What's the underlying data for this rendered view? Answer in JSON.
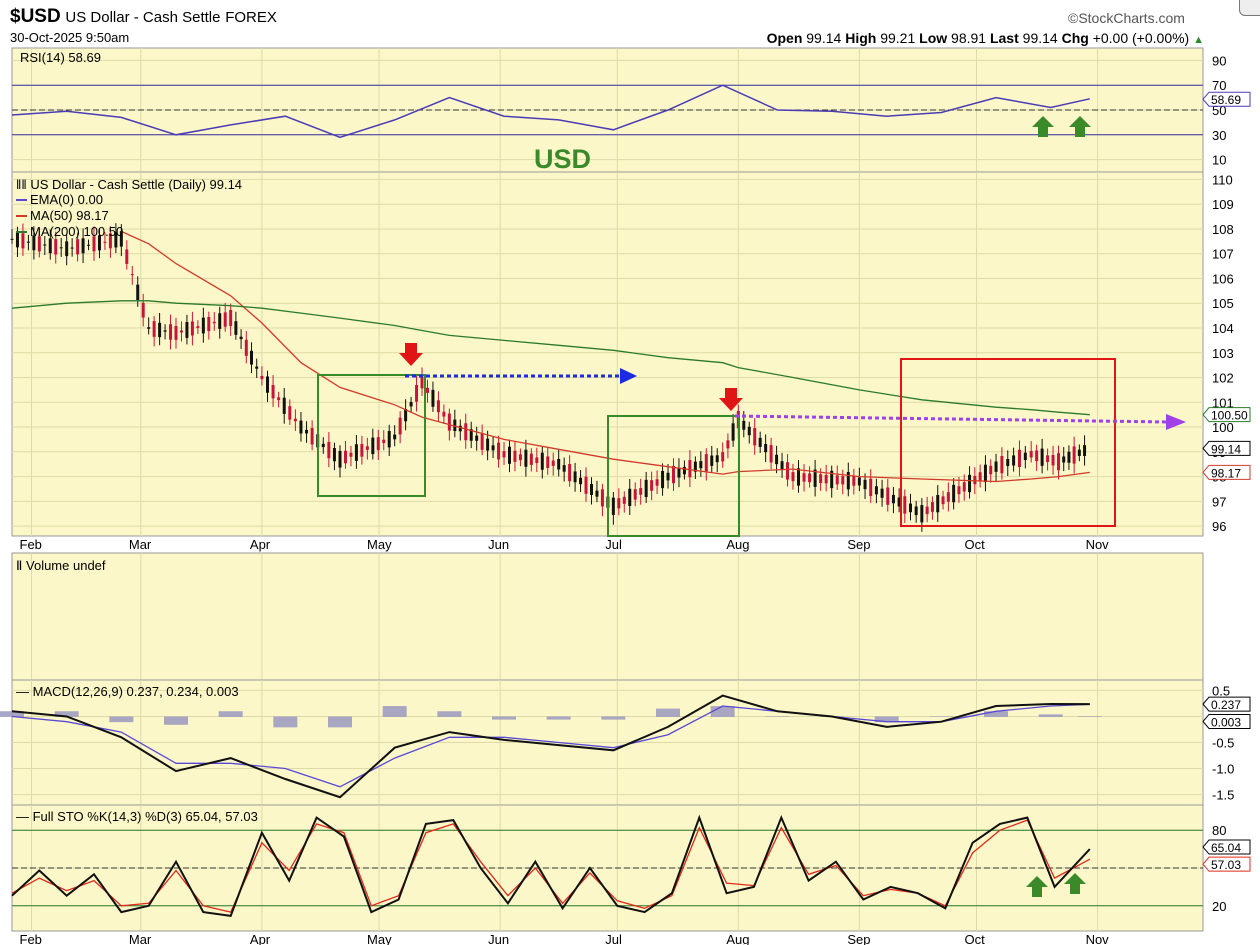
{
  "header": {
    "symbol": "$USD",
    "name": "US Dollar - Cash Settle",
    "exchange": "FOREX",
    "brand": "©StockCharts.com",
    "datetime": "30-Oct-2025 9:50am",
    "open_label": "Open",
    "open": "99.14",
    "high_label": "High",
    "high": "99.21",
    "low_label": "Low",
    "low": "98.91",
    "last_label": "Last",
    "last": "99.14",
    "chg_label": "Chg",
    "chg": "+0.00 (+0.00%)"
  },
  "colors": {
    "panel_bg": "#fbf7c8",
    "grid": "#dedba8",
    "price_up": "#111111",
    "price_down": "#c8143c",
    "ma50": "#d13a2a",
    "ma200": "#2b7a2b",
    "rsi": "#4b3bb5",
    "macd": "#111111",
    "macd_signal": "#5b49d6",
    "histogram": "#9a98c0",
    "stoch_k": "#111111",
    "stoch_d": "#e02a1a",
    "annotation_green": "#3a8a2a",
    "annotation_red": "#e01616",
    "blue_arrow": "#1c2be0",
    "purple_arrow": "#a040e8"
  },
  "annotation_text": "USD",
  "x_months": [
    "Feb",
    "Mar",
    "Apr",
    "May",
    "Jun",
    "Jul",
    "Aug",
    "Sep",
    "Oct",
    "Nov"
  ],
  "chart_data": [
    {
      "type": "line",
      "panel": "rsi",
      "title": "RSI(14) 58.69",
      "ylim": [
        0,
        100
      ],
      "yticks": [
        90,
        70,
        50,
        30,
        10
      ],
      "reference_lines": [
        70,
        50,
        30
      ],
      "last_value_label": "58.69",
      "x": [
        "2025-01-27",
        "2025-02-10",
        "2025-02-24",
        "2025-03-10",
        "2025-03-24",
        "2025-04-07",
        "2025-04-21",
        "2025-05-05",
        "2025-05-19",
        "2025-06-02",
        "2025-06-16",
        "2025-06-30",
        "2025-07-14",
        "2025-07-28",
        "2025-08-11",
        "2025-08-25",
        "2025-09-08",
        "2025-09-22",
        "2025-10-06",
        "2025-10-20",
        "2025-10-30"
      ],
      "series": [
        {
          "values": [
            46,
            49,
            44,
            30,
            38,
            45,
            28,
            42,
            60,
            45,
            42,
            34,
            50,
            70,
            50,
            49,
            45,
            48,
            60,
            52,
            59
          ]
        }
      ]
    },
    {
      "type": "line",
      "panel": "price",
      "title": "US Dollar - Cash Settle (Daily) 99.14",
      "legend": [
        "EMA(0) 0.00",
        "MA(50) 98.17",
        "MA(200) 100.50"
      ],
      "ylim": [
        95.6,
        110.3
      ],
      "yticks": [
        110,
        109,
        108,
        107,
        106,
        105,
        104,
        103,
        102,
        101,
        100,
        99,
        98,
        97,
        96
      ],
      "last_value_labels": [
        "100.50",
        "99.14",
        "98.17"
      ],
      "x": [
        "2025-01-27",
        "2025-02-10",
        "2025-02-24",
        "2025-03-03",
        "2025-03-10",
        "2025-03-24",
        "2025-04-01",
        "2025-04-11",
        "2025-04-21",
        "2025-05-05",
        "2025-05-12",
        "2025-05-19",
        "2025-06-02",
        "2025-06-16",
        "2025-06-30",
        "2025-07-14",
        "2025-07-28",
        "2025-08-01",
        "2025-08-15",
        "2025-09-01",
        "2025-09-17",
        "2025-10-06",
        "2025-10-15",
        "2025-10-22",
        "2025-10-30"
      ],
      "series": [
        {
          "name": "US Dollar - Cash Settle",
          "values": [
            107.6,
            107.2,
            107.6,
            104.0,
            103.8,
            104.4,
            102.0,
            100.0,
            98.7,
            99.6,
            101.8,
            100.2,
            98.9,
            98.5,
            96.8,
            98.0,
            98.8,
            100.3,
            98.0,
            97.8,
            96.5,
            98.4,
            98.9,
            98.6,
            99.14
          ]
        },
        {
          "name": "MA(50)",
          "values": [
            null,
            null,
            107.9,
            107.4,
            106.6,
            105.3,
            104.2,
            102.6,
            101.6,
            100.9,
            100.4,
            100.1,
            99.5,
            99.1,
            98.7,
            98.4,
            98.1,
            98.2,
            98.3,
            98.0,
            97.9,
            97.8,
            97.9,
            98.0,
            98.17
          ]
        },
        {
          "name": "MA(200)",
          "values": [
            104.8,
            105.0,
            105.1,
            105.1,
            105.0,
            104.9,
            104.8,
            104.6,
            104.4,
            104.1,
            103.9,
            103.7,
            103.5,
            103.3,
            103.1,
            102.8,
            102.6,
            102.4,
            102.0,
            101.5,
            101.1,
            100.8,
            100.7,
            100.6,
            100.5
          ]
        }
      ]
    },
    {
      "type": "bar",
      "panel": "volume",
      "title": "Volume undef",
      "values": []
    },
    {
      "type": "line",
      "panel": "macd",
      "title": "MACD(12,26,9) 0.237, 0.234, 0.003",
      "ylim": [
        -1.7,
        0.7
      ],
      "yticks": [
        0.5,
        0.0,
        -0.5,
        -1.0,
        -1.5
      ],
      "last_value_labels": [
        "0.237",
        "0.003"
      ],
      "x": [
        "2025-01-27",
        "2025-02-10",
        "2025-02-24",
        "2025-03-10",
        "2025-03-24",
        "2025-04-07",
        "2025-04-21",
        "2025-05-05",
        "2025-05-19",
        "2025-06-02",
        "2025-06-16",
        "2025-06-30",
        "2025-07-14",
        "2025-07-28",
        "2025-08-11",
        "2025-08-25",
        "2025-09-08",
        "2025-09-22",
        "2025-10-06",
        "2025-10-20",
        "2025-10-30"
      ],
      "series": [
        {
          "name": "MACD",
          "values": [
            0.1,
            0.0,
            -0.4,
            -1.05,
            -0.8,
            -1.2,
            -1.55,
            -0.6,
            -0.3,
            -0.45,
            -0.55,
            -0.65,
            -0.2,
            0.4,
            0.1,
            0.0,
            -0.2,
            -0.1,
            0.2,
            0.24,
            0.237
          ]
        },
        {
          "name": "Signal",
          "values": [
            0.0,
            -0.1,
            -0.3,
            -0.9,
            -0.9,
            -1.0,
            -1.35,
            -0.8,
            -0.4,
            -0.4,
            -0.5,
            -0.6,
            -0.35,
            0.2,
            0.1,
            0.0,
            -0.1,
            -0.1,
            0.1,
            0.2,
            0.234
          ]
        },
        {
          "name": "Histogram",
          "values": [
            0.1,
            0.1,
            -0.1,
            -0.15,
            0.1,
            -0.2,
            -0.2,
            0.2,
            0.1,
            -0.05,
            -0.05,
            -0.05,
            0.15,
            0.2,
            0.0,
            0.0,
            -0.1,
            0.0,
            0.1,
            0.04,
            0.003
          ]
        }
      ]
    },
    {
      "type": "line",
      "panel": "stochastic",
      "title": "Full STO %K(14,3) %D(3) 65.04, 57.03",
      "ylim": [
        0,
        100
      ],
      "yticks": [
        80,
        50,
        20
      ],
      "reference_lines": [
        80,
        50,
        20
      ],
      "last_value_labels": [
        "65.04",
        "57.03"
      ],
      "x": [
        "2025-01-27",
        "2025-02-03",
        "2025-02-10",
        "2025-02-17",
        "2025-02-24",
        "2025-03-03",
        "2025-03-10",
        "2025-03-17",
        "2025-03-24",
        "2025-04-01",
        "2025-04-08",
        "2025-04-15",
        "2025-04-22",
        "2025-04-29",
        "2025-05-06",
        "2025-05-13",
        "2025-05-20",
        "2025-05-27",
        "2025-06-03",
        "2025-06-10",
        "2025-06-17",
        "2025-06-24",
        "2025-07-01",
        "2025-07-08",
        "2025-07-15",
        "2025-07-22",
        "2025-07-29",
        "2025-08-05",
        "2025-08-12",
        "2025-08-19",
        "2025-08-26",
        "2025-09-02",
        "2025-09-09",
        "2025-09-16",
        "2025-09-23",
        "2025-09-30",
        "2025-10-07",
        "2025-10-14",
        "2025-10-21",
        "2025-10-30"
      ],
      "series": [
        {
          "name": "%K",
          "values": [
            28,
            48,
            28,
            45,
            15,
            20,
            55,
            15,
            12,
            78,
            40,
            90,
            75,
            15,
            25,
            85,
            88,
            50,
            22,
            55,
            18,
            50,
            20,
            15,
            30,
            90,
            30,
            35,
            90,
            40,
            55,
            25,
            35,
            30,
            18,
            70,
            85,
            90,
            35,
            65
          ]
        },
        {
          "name": "%D",
          "values": [
            30,
            42,
            32,
            40,
            20,
            22,
            48,
            20,
            15,
            70,
            48,
            85,
            78,
            20,
            28,
            78,
            85,
            55,
            28,
            50,
            22,
            46,
            24,
            18,
            28,
            82,
            38,
            36,
            82,
            45,
            52,
            28,
            33,
            30,
            20,
            62,
            80,
            88,
            42,
            57
          ]
        }
      ]
    }
  ]
}
